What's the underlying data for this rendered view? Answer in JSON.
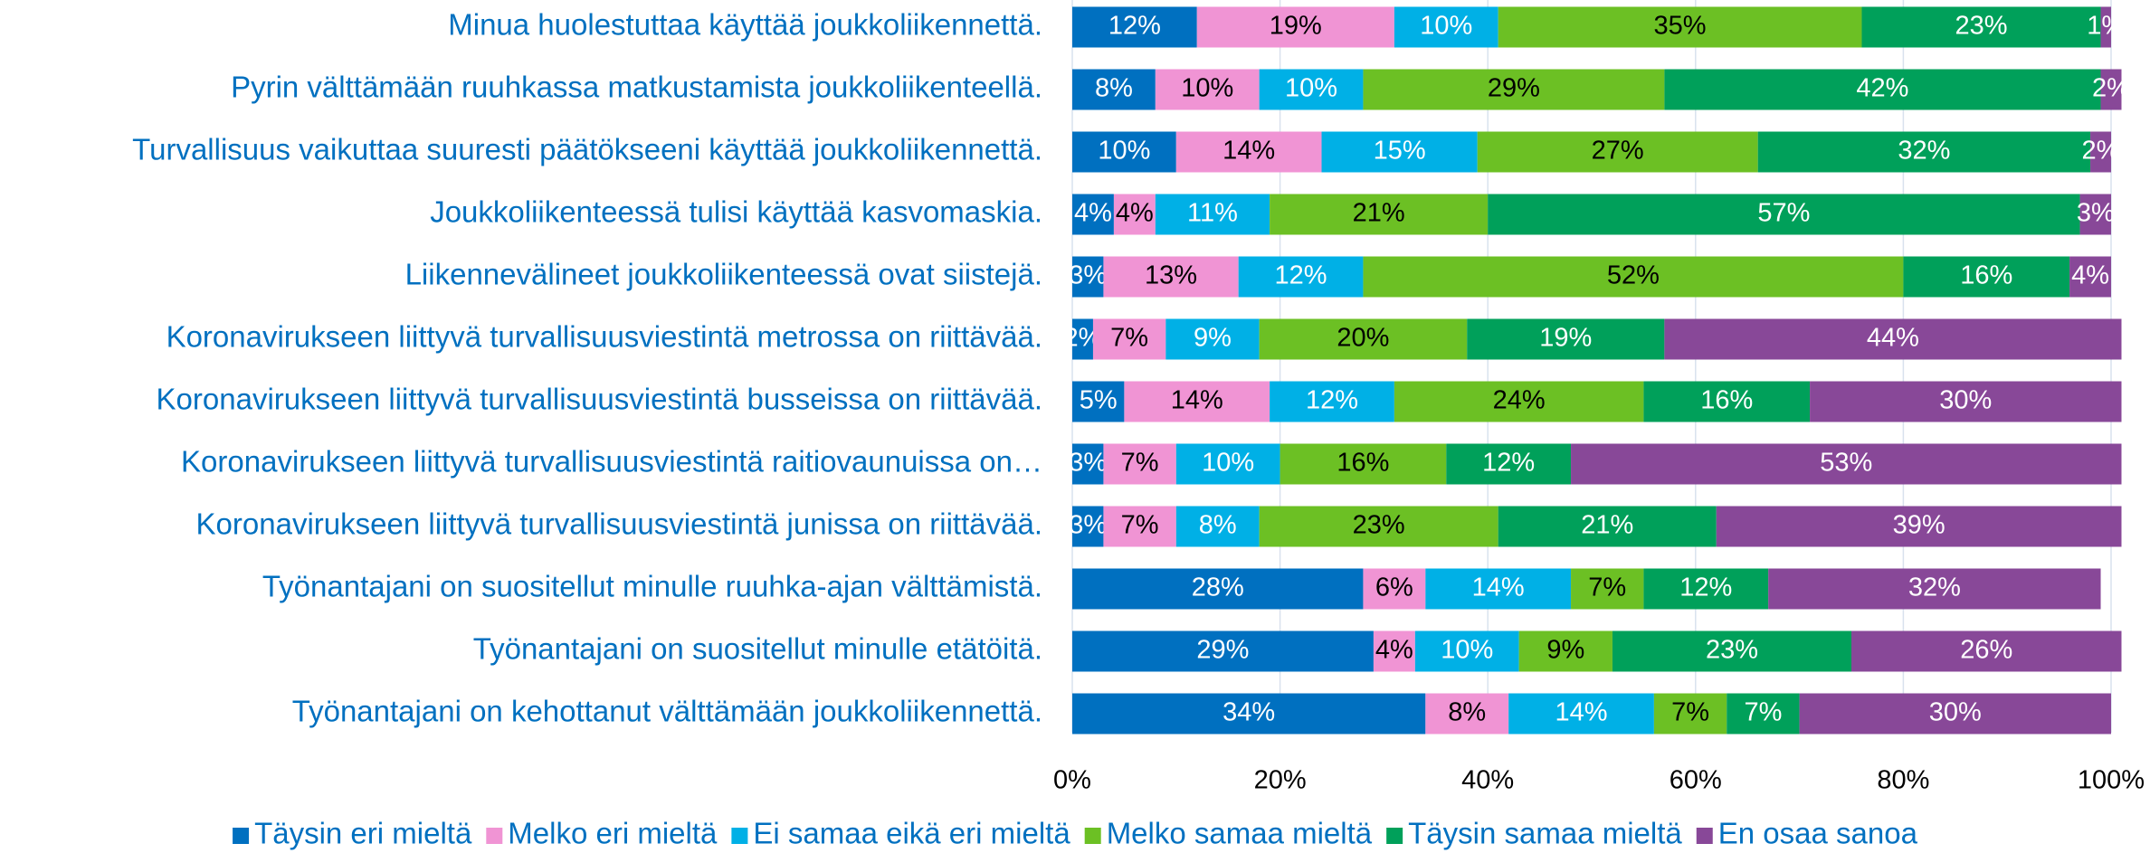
{
  "chart_data": {
    "type": "stacked_barh",
    "categories": [
      "Minua huolestuttaa käyttää joukkoliikennettä.",
      "Pyrin välttämään ruuhkassa matkustamista joukkoliikenteellä.",
      "Turvallisuus vaikuttaa suuresti päätökseeni käyttää joukkoliikennettä.",
      "Joukkoliikenteessä tulisi käyttää kasvomaskia.",
      "Liikennevälineet joukkoliikenteessä ovat siistejä.",
      "Koronavirukseen liittyvä turvallisuusviestintä metrossa on riittävää.",
      "Koronavirukseen liittyvä turvallisuusviestintä busseissa on riittävää.",
      "Koronavirukseen liittyvä turvallisuusviestintä raitiovaunuissa on…",
      "Koronavirukseen liittyvä turvallisuusviestintä junissa on riittävää.",
      "Työnantajani on suositellut minulle ruuhka-ajan välttämistä.",
      "Työnantajani on suositellut minulle etätöitä.",
      "Työnantajani on kehottanut välttämään joukkoliikennettä."
    ],
    "series": [
      {
        "name": "Täysin eri mieltä",
        "color": "#0070c0",
        "values": [
          12,
          8,
          10,
          4,
          3,
          2,
          5,
          3,
          3,
          28,
          29,
          34
        ],
        "value_labels": [
          "12%",
          "8%",
          "10%",
          "4%",
          "3%",
          "2%",
          "5%",
          "3%",
          "3%",
          "28%",
          "29%",
          "34%"
        ]
      },
      {
        "name": "Melko eri mieltä",
        "color": "#f094d4",
        "values": [
          19,
          10,
          14,
          4,
          13,
          7,
          14,
          7,
          7,
          6,
          4,
          8
        ],
        "value_labels": [
          "19%",
          "10%",
          "14%",
          "4%",
          "13%",
          "7%",
          "14%",
          "7%",
          "7%",
          "6%",
          "4%",
          "8%"
        ]
      },
      {
        "name": "Ei samaa eikä eri mieltä",
        "color": "#00b0e6",
        "values": [
          10,
          10,
          15,
          11,
          12,
          9,
          12,
          10,
          8,
          14,
          10,
          14
        ],
        "value_labels": [
          "10%",
          "10%",
          "15%",
          "11%",
          "12%",
          "9%",
          "12%",
          "10%",
          "8%",
          "14%",
          "10%",
          "14%"
        ]
      },
      {
        "name": "Melko samaa mieltä",
        "color": "#6cc024",
        "values": [
          35,
          29,
          27,
          21,
          52,
          20,
          24,
          16,
          23,
          7,
          9,
          7
        ],
        "value_labels": [
          "35%",
          "29%",
          "27%",
          "21%",
          "52%",
          "20%",
          "24%",
          "16%",
          "23%",
          "7%",
          "9%",
          "7%"
        ]
      },
      {
        "name": "Täysin samaa mieltä",
        "color": "#00a05a",
        "values": [
          23,
          42,
          32,
          57,
          16,
          19,
          16,
          12,
          21,
          12,
          23,
          7
        ],
        "value_labels": [
          "23%",
          "42%",
          "32%",
          "57%",
          "16%",
          "19%",
          "16%",
          "12%",
          "21%",
          "12%",
          "23%",
          "7%"
        ]
      },
      {
        "name": "En osaa sanoa",
        "color": "#884898",
        "values": [
          1,
          2,
          2,
          3,
          4,
          44,
          30,
          53,
          39,
          32,
          26,
          30
        ],
        "value_labels": [
          "1%",
          "2%",
          "2%",
          "3%",
          "4%",
          "44%",
          "30%",
          "53%",
          "39%",
          "32%",
          "26%",
          "30%"
        ]
      }
    ],
    "xlim": [
      0,
      100
    ],
    "xticks": [
      {
        "value": 0,
        "label": "0%"
      },
      {
        "value": 20,
        "label": "20%"
      },
      {
        "value": 40,
        "label": "40%"
      },
      {
        "value": 60,
        "label": "60%"
      },
      {
        "value": 80,
        "label": "80%"
      },
      {
        "value": 100,
        "label": "100%"
      }
    ],
    "grid": true,
    "legend": "bottom"
  }
}
